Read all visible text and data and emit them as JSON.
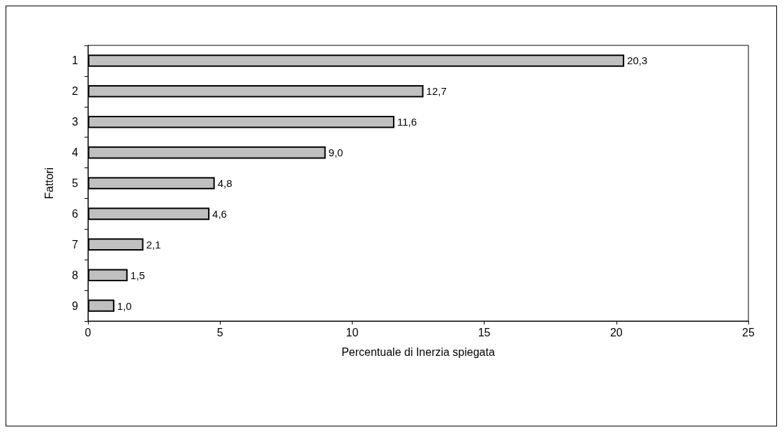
{
  "chart_data": {
    "type": "bar",
    "orientation": "horizontal",
    "xlabel": "Percentuale di Inerzia spiegata",
    "ylabel": "Fattori",
    "categories": [
      "1",
      "2",
      "3",
      "4",
      "5",
      "6",
      "7",
      "8",
      "9"
    ],
    "values": [
      20.3,
      12.7,
      11.6,
      9.0,
      4.8,
      4.6,
      2.1,
      1.5,
      1.0
    ],
    "value_labels": [
      "20,3",
      "12,7",
      "11,6",
      "9,0",
      "4,8",
      "4,6",
      "2,1",
      "1,5",
      "1,0"
    ],
    "color": "#c0c0c0",
    "xlim": [
      0,
      25
    ],
    "xticks": [
      0,
      5,
      10,
      15,
      20,
      25
    ],
    "grid": false
  }
}
